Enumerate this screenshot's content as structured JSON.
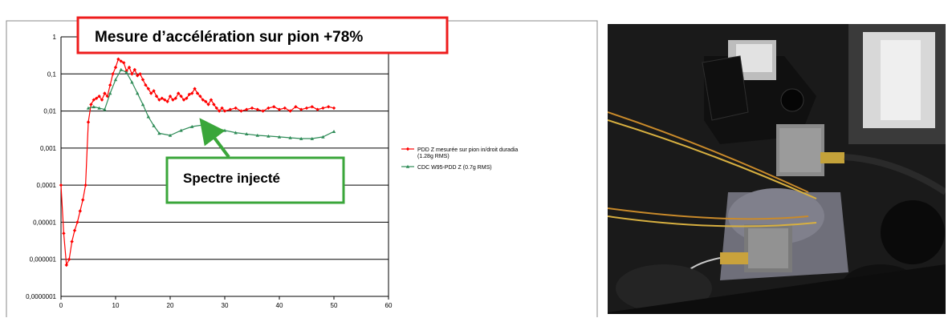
{
  "chart_data": {
    "type": "line",
    "yscale": "log",
    "xlim": [
      0,
      60
    ],
    "ylim": [
      1e-07,
      1
    ],
    "x_ticks": [
      "0",
      "10",
      "20",
      "30",
      "40",
      "50",
      "60"
    ],
    "y_ticks": [
      "0,0000001",
      "0,000001",
      "0,00001",
      "0,0001",
      "0,001",
      "0,01",
      "0,1",
      "1"
    ],
    "grid": "horizontal",
    "legend_position": "right",
    "series": [
      {
        "name": "PDD Z mesurée sur pion in/droit duradia (1.28g RMS)",
        "color": "#ff0000",
        "marker": "diamond",
        "x": [
          0,
          0.5,
          1,
          1.5,
          2,
          2.5,
          3,
          3.5,
          4,
          4.5,
          5,
          5.5,
          6,
          6.5,
          7,
          7.5,
          8,
          8.5,
          9,
          9.5,
          10,
          10.5,
          11,
          11.5,
          12,
          12.5,
          13,
          13.5,
          14,
          14.5,
          15,
          15.5,
          16,
          16.5,
          17,
          17.5,
          18,
          18.5,
          19,
          19.5,
          20,
          20.5,
          21,
          21.5,
          22,
          22.5,
          23,
          23.5,
          24,
          24.5,
          25,
          25.5,
          26,
          26.5,
          27,
          27.5,
          28,
          28.5,
          29,
          29.5,
          30,
          31,
          32,
          33,
          34,
          35,
          36,
          37,
          38,
          39,
          40,
          41,
          42,
          43,
          44,
          45,
          46,
          47,
          48,
          49,
          50
        ],
        "y": [
          0.0001,
          5e-06,
          7e-07,
          1e-06,
          3e-06,
          6e-06,
          1e-05,
          2e-05,
          4e-05,
          0.0001,
          0.005,
          0.015,
          0.02,
          0.022,
          0.025,
          0.02,
          0.03,
          0.025,
          0.05,
          0.1,
          0.15,
          0.25,
          0.22,
          0.2,
          0.12,
          0.15,
          0.1,
          0.13,
          0.09,
          0.1,
          0.07,
          0.05,
          0.04,
          0.03,
          0.035,
          0.025,
          0.02,
          0.022,
          0.02,
          0.018,
          0.025,
          0.02,
          0.022,
          0.03,
          0.025,
          0.02,
          0.022,
          0.028,
          0.03,
          0.04,
          0.03,
          0.025,
          0.02,
          0.018,
          0.015,
          0.02,
          0.015,
          0.012,
          0.01,
          0.012,
          0.01,
          0.011,
          0.012,
          0.01,
          0.011,
          0.012,
          0.011,
          0.01,
          0.012,
          0.013,
          0.011,
          0.012,
          0.01,
          0.013,
          0.011,
          0.012,
          0.013,
          0.011,
          0.012,
          0.013,
          0.012
        ]
      },
      {
        "name": "CDC W95-PDD Z (0.7g RMS)",
        "color": "#2e8b57",
        "marker": "triangle",
        "x": [
          5,
          6,
          7,
          8,
          9,
          10,
          11,
          12,
          13,
          14,
          15,
          16,
          17,
          18,
          20,
          22,
          24,
          26,
          28,
          30,
          32,
          34,
          36,
          38,
          40,
          42,
          44,
          46,
          48,
          50
        ],
        "y": [
          0.012,
          0.013,
          0.012,
          0.011,
          0.03,
          0.07,
          0.13,
          0.11,
          0.06,
          0.03,
          0.015,
          0.007,
          0.004,
          0.0025,
          0.0022,
          0.003,
          0.0038,
          0.0042,
          0.0036,
          0.003,
          0.0026,
          0.0024,
          0.0022,
          0.0021,
          0.002,
          0.0019,
          0.0018,
          0.0018,
          0.002,
          0.0028
        ]
      }
    ],
    "annotations": [
      "Mesure d’accélération sur pion +78%",
      "Spectre injecté"
    ]
  },
  "callouts": {
    "top": "Mesure d’accélération sur pion +78%",
    "bottom": "Spectre injecté"
  },
  "colors": {
    "callout_red": "#ee1c1c",
    "callout_green": "#3aa63a",
    "arrow_green": "#3aa63a"
  },
  "photo": {
    "description_icon": "accelerometer-photo"
  }
}
